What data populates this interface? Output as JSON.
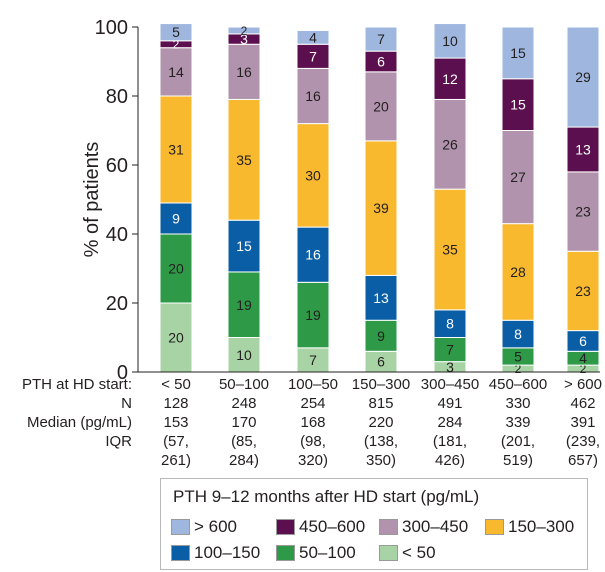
{
  "chart_data": {
    "type": "bar",
    "stacked": true,
    "ylabel": "% of patients",
    "yticks": [
      "0",
      "20",
      "40",
      "60",
      "80",
      "100"
    ],
    "ylim": [
      0,
      100
    ],
    "grid": false,
    "categories": [
      "< 50",
      "50–100",
      "100–50",
      "150–300",
      "300–450",
      "450–600",
      "> 600"
    ],
    "series": [
      {
        "name": "< 50",
        "color": "#a8d4a5",
        "text_color": "#231f20",
        "values": [
          20,
          10,
          7,
          6,
          3,
          2,
          2
        ]
      },
      {
        "name": "50–100",
        "color": "#2e9a47",
        "text_color": "#231f20",
        "values": [
          20,
          19,
          19,
          9,
          7,
          5,
          4
        ]
      },
      {
        "name": "100–150",
        "color": "#0a5ea6",
        "text_color": "#ffffff",
        "values": [
          9,
          15,
          16,
          13,
          8,
          8,
          6
        ]
      },
      {
        "name": "150–300",
        "color": "#f8b92e",
        "text_color": "#231f20",
        "values": [
          31,
          35,
          30,
          39,
          35,
          28,
          23
        ]
      },
      {
        "name": "300–450",
        "color": "#b293ad",
        "text_color": "#231f20",
        "values": [
          14,
          16,
          16,
          20,
          26,
          27,
          23
        ]
      },
      {
        "name": "450–600",
        "color": "#5c0f4e",
        "text_color": "#ffffff",
        "values": [
          2,
          3,
          7,
          6,
          12,
          15,
          13
        ]
      },
      {
        "name": "> 600",
        "color": "#9fb7df",
        "text_color": "#231f20",
        "values": [
          5,
          2,
          4,
          7,
          10,
          15,
          29
        ]
      }
    ],
    "table": {
      "rows": [
        {
          "label": "PTH at HD start:",
          "values": [
            "< 50",
            "50–100",
            "100–50",
            "150–300",
            "300–450",
            "450–600",
            "> 600"
          ]
        },
        {
          "label": "N",
          "values": [
            "128",
            "248",
            "254",
            "815",
            "491",
            "330",
            "462"
          ]
        },
        {
          "label": "Median (pg/mL)",
          "values": [
            "153",
            "170",
            "168",
            "220",
            "284",
            "339",
            "391"
          ]
        },
        {
          "label": "IQR",
          "values": [
            "(57,",
            "(85,",
            "(98,",
            "(138,",
            "(181,",
            "(201,",
            "(239,"
          ]
        },
        {
          "label": "",
          "values": [
            "261)",
            "284)",
            "320)",
            "350)",
            "426)",
            "519)",
            "657)"
          ]
        }
      ]
    },
    "legend": {
      "title": "PTH 9–12 months after HD start (pg/mL)",
      "placement": "bottom",
      "order": [
        "> 600",
        "450–600",
        "300–450",
        "150–300",
        "100–150",
        "50–100",
        "< 50"
      ]
    }
  }
}
